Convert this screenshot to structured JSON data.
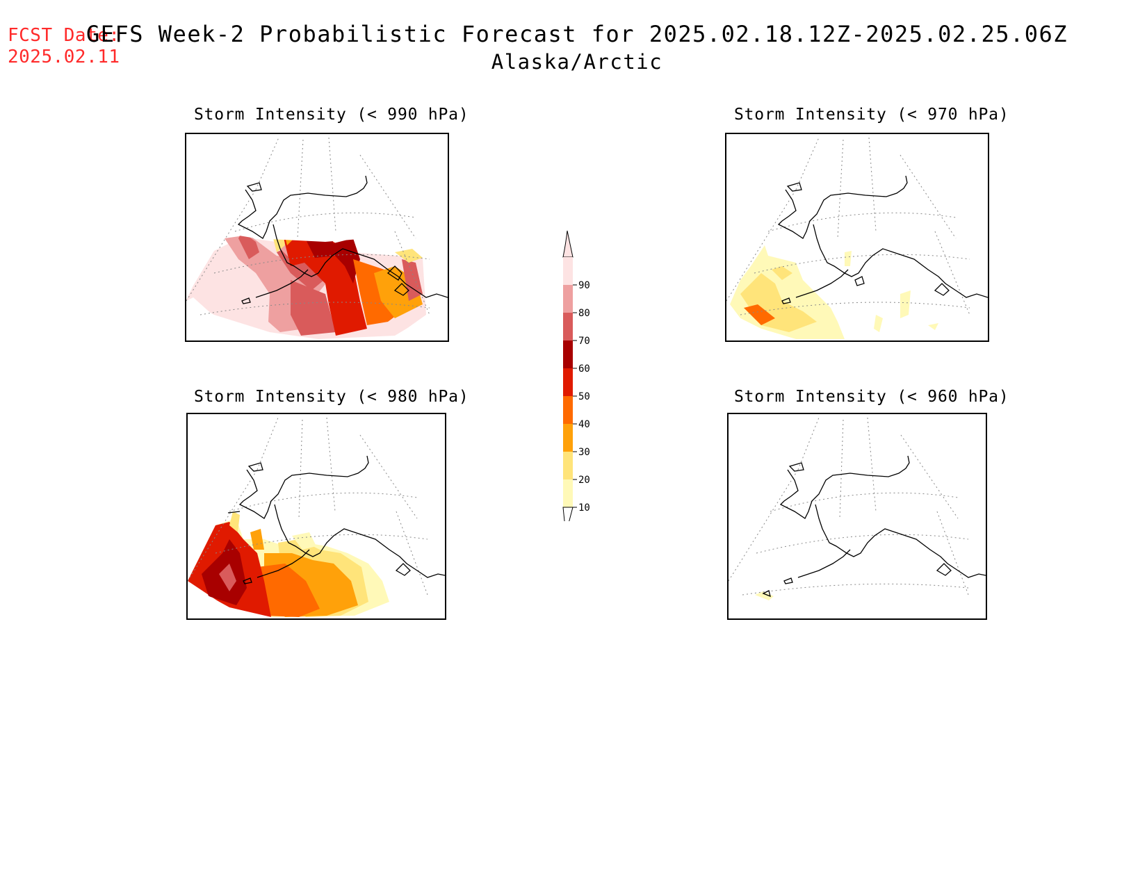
{
  "header": {
    "fcst_label": "FCST Date:",
    "fcst_date": "2025.02.11",
    "title": "GEFS Week-2 Probabilistic Forecast for 2025.02.18.12Z-2025.02.25.06Z",
    "subtitle": "Alaska/Arctic"
  },
  "panels": [
    {
      "id": "p990",
      "title": "Storm Intensity (< 990 hPa)"
    },
    {
      "id": "p970",
      "title": "Storm Intensity (< 970 hPa)"
    },
    {
      "id": "p980",
      "title": "Storm Intensity (< 980 hPa)"
    },
    {
      "id": "p960",
      "title": "Storm Intensity (< 960 hPa)"
    }
  ],
  "legend": {
    "levels": [
      "10",
      "20",
      "30",
      "40",
      "50",
      "60",
      "70",
      "80",
      "90"
    ],
    "colors": [
      "#fff9b8",
      "#ffe47a",
      "#ffa10a",
      "#ff6a00",
      "#e01a00",
      "#a80000",
      "#d95b5b",
      "#eea0a0",
      "#fde3e3"
    ]
  }
}
